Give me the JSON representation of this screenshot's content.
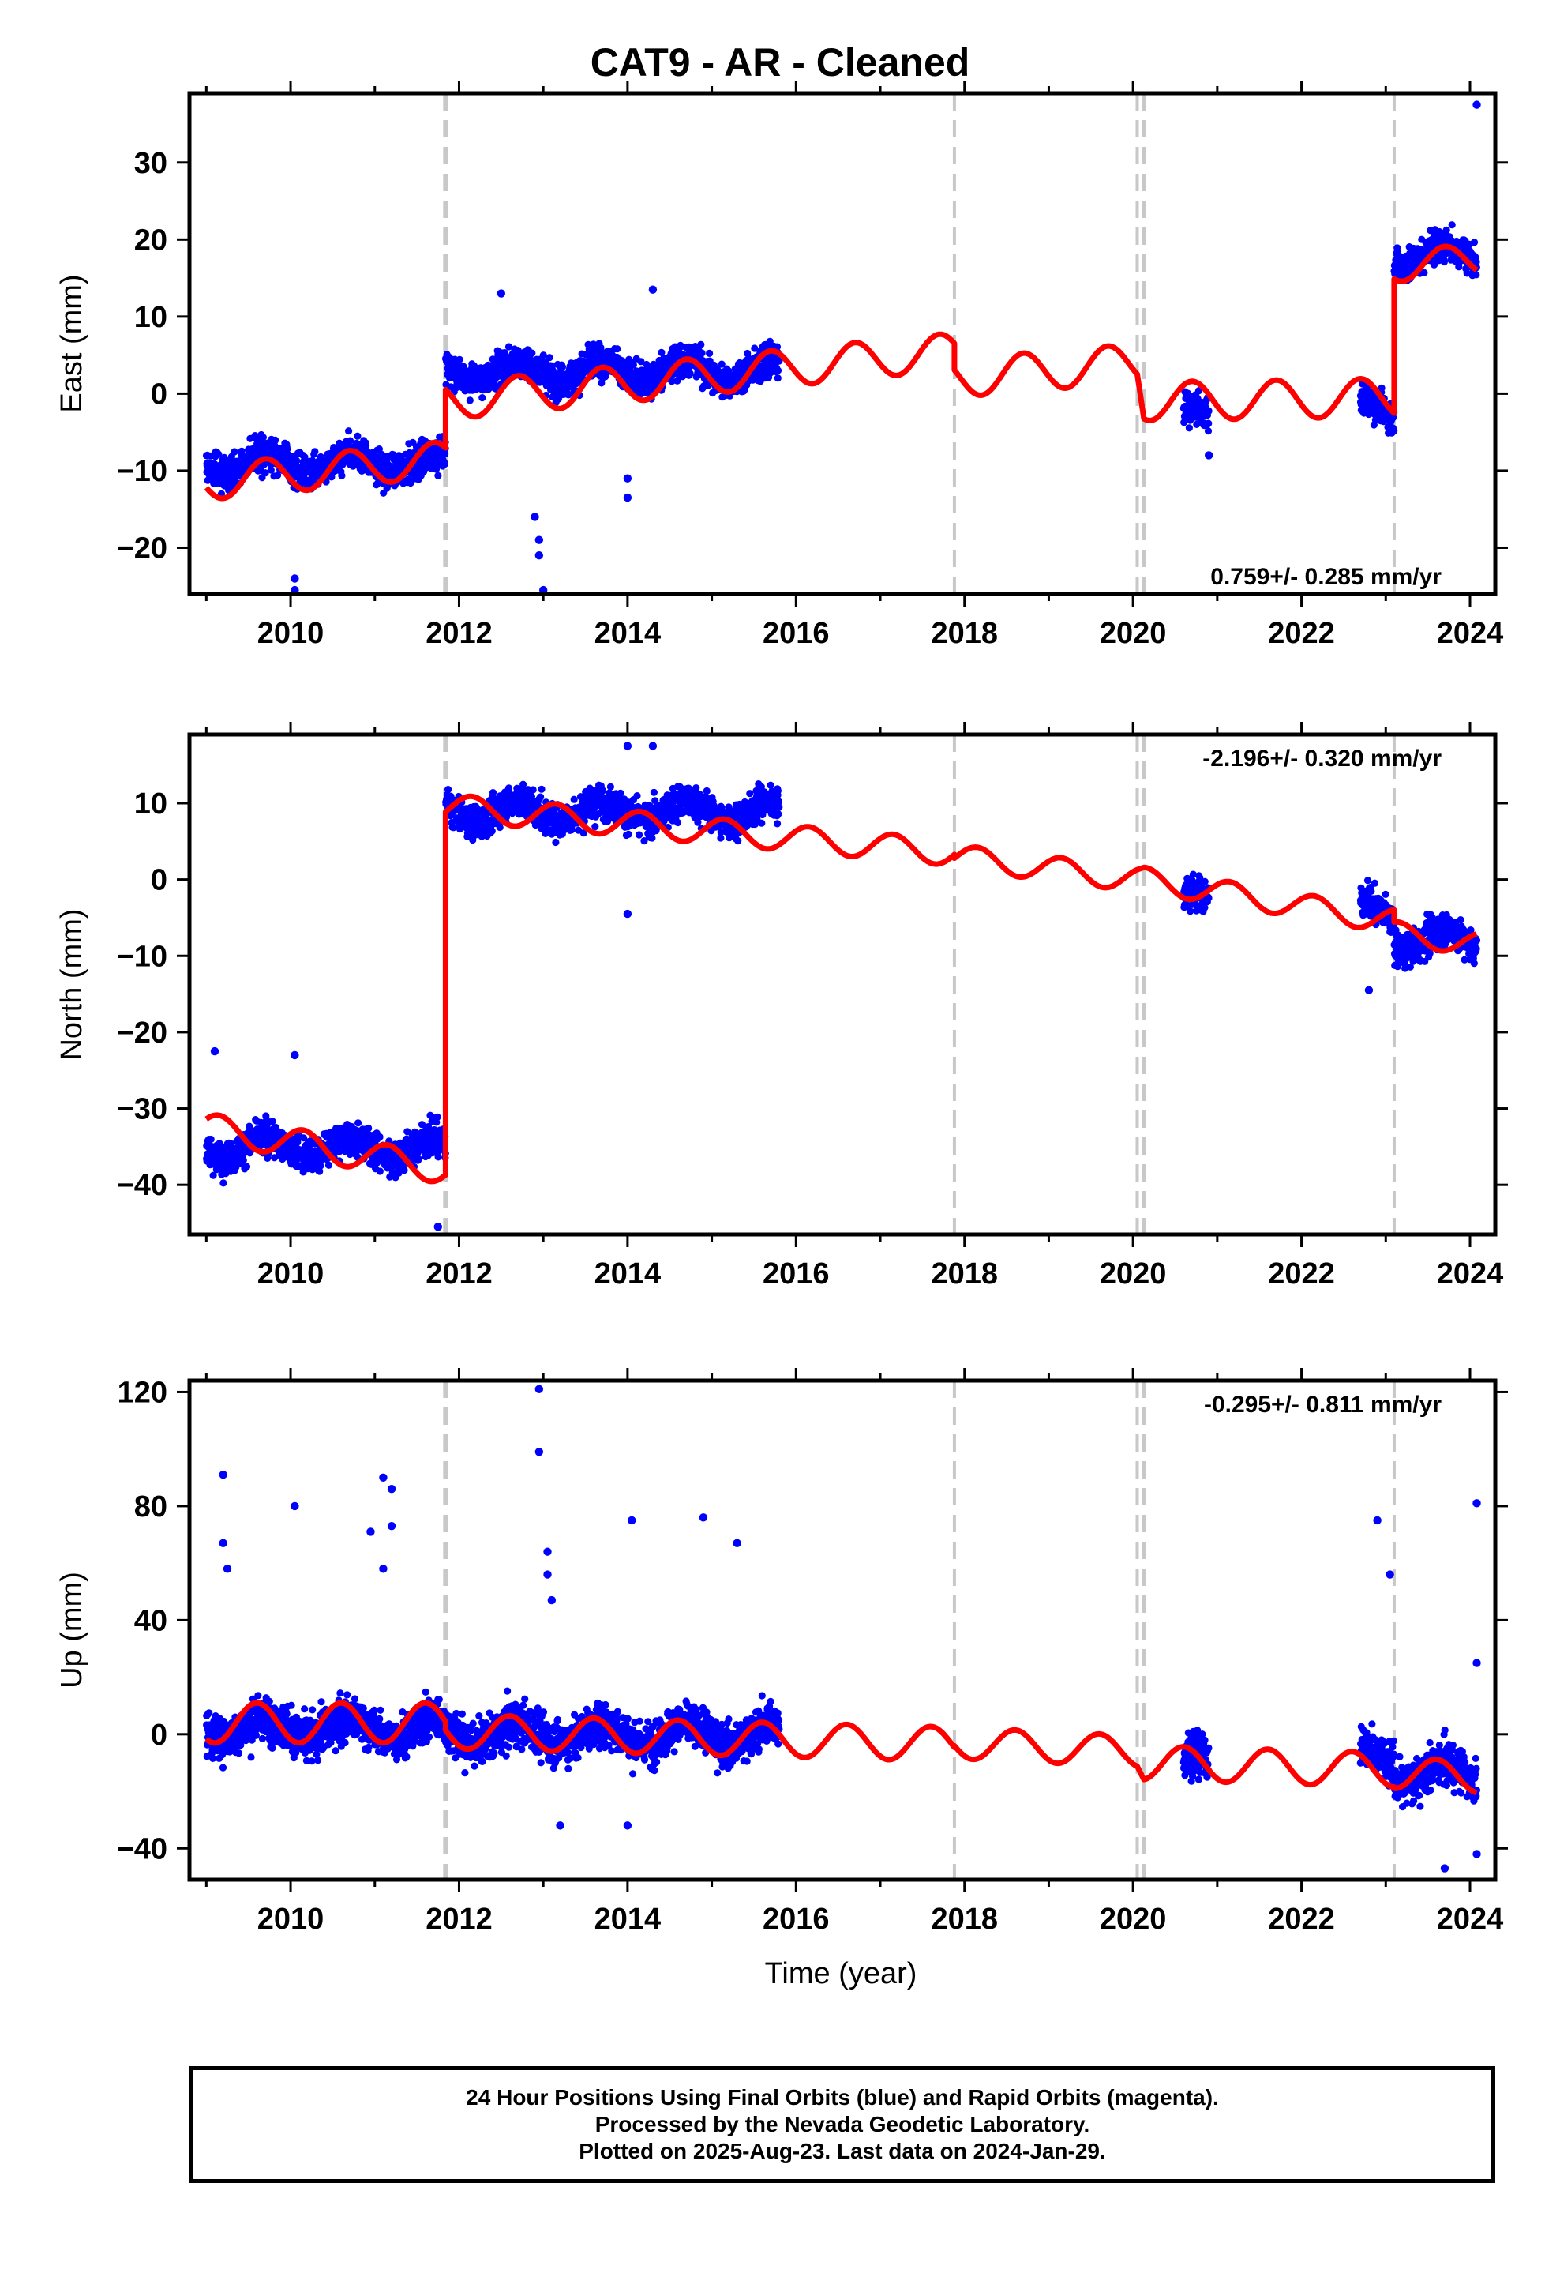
{
  "title": "CAT9  - AR - Cleaned",
  "xlabel": "Time (year)",
  "footer_lines": [
    "24 Hour Positions Using Final Orbits (blue) and Rapid Orbits (magenta).",
    "Processed by the Nevada Geodetic Laboratory.",
    "Plotted on 2025-Aug-23. Last data on 2024-Jan-29."
  ],
  "colors": {
    "data": "#0000ff",
    "model": "#ff0000",
    "breaks": "#c8c8c8",
    "frame": "#000000"
  },
  "chart_data": [
    {
      "type": "scatter",
      "panel": "east",
      "ylabel": "East (mm)",
      "rate_text": "0.759+/- 0.285 mm/yr",
      "rate_position": "bottom-right",
      "xlim": [
        2008.8,
        2024.3
      ],
      "ylim": [
        -26,
        39
      ],
      "xticks": [
        2010,
        2012,
        2014,
        2016,
        2018,
        2020,
        2022,
        2024
      ],
      "yticks": [
        -20,
        -10,
        0,
        10,
        20,
        30
      ],
      "breaks": [
        2011.83,
        2011.85,
        2017.88,
        2020.05,
        2020.13,
        2023.1
      ],
      "data_segments": [
        [
          2009.0,
          2011.84,
          -9
        ],
        [
          2011.84,
          2015.8,
          3
        ],
        [
          2020.6,
          2020.9,
          -3
        ],
        [
          2022.7,
          2023.1,
          -2
        ],
        [
          2023.1,
          2024.08,
          18
        ]
      ],
      "outliers": [
        [
          2010.05,
          -24
        ],
        [
          2010.05,
          -25.5
        ],
        [
          2012.9,
          -16
        ],
        [
          2012.95,
          -19
        ],
        [
          2013.0,
          -25.5
        ],
        [
          2012.95,
          -21
        ],
        [
          2014.0,
          -13.5
        ],
        [
          2014.0,
          -11
        ],
        [
          2012.5,
          13
        ],
        [
          2014.3,
          13.5
        ],
        [
          2024.08,
          37.5
        ],
        [
          2020.9,
          -8
        ]
      ],
      "model_segments": [
        {
          "x0": 2009.0,
          "x1": 2011.84,
          "y0": -11.5,
          "y1": -8.5,
          "amp": 2.3,
          "phase": 0.55
        },
        {
          "x0": 2011.84,
          "x1": 2017.88,
          "y0": -1.0,
          "y1": 5.5,
          "amp": 2.4,
          "phase": 0.55
        },
        {
          "x0": 2017.88,
          "x1": 2020.05,
          "y0": 2.0,
          "y1": 4.0,
          "amp": 2.5,
          "phase": 0.55
        },
        {
          "x0": 2020.13,
          "x1": 2023.1,
          "y0": -1.0,
          "y1": -0.5,
          "amp": 2.5,
          "phase": 0.55
        },
        {
          "x0": 2023.1,
          "x1": 2024.08,
          "y0": 16.5,
          "y1": 17.5,
          "amp": 2.0,
          "phase": 0.55
        }
      ]
    },
    {
      "type": "scatter",
      "panel": "north",
      "ylabel": "North (mm)",
      "rate_text": "-2.196+/- 0.320 mm/yr",
      "rate_position": "top-right",
      "xlim": [
        2008.8,
        2024.3
      ],
      "ylim": [
        -46.5,
        19
      ],
      "xticks": [
        2010,
        2012,
        2014,
        2016,
        2018,
        2020,
        2022,
        2024
      ],
      "yticks": [
        -40,
        -30,
        -20,
        -10,
        0,
        10
      ],
      "breaks": [
        2011.83,
        2011.85,
        2017.88,
        2020.05,
        2020.13,
        2023.1
      ],
      "data_segments": [
        [
          2009.0,
          2011.84,
          -35
        ],
        [
          2011.84,
          2015.8,
          9
        ],
        [
          2020.6,
          2020.9,
          -3
        ],
        [
          2022.7,
          2023.1,
          -4
        ],
        [
          2023.1,
          2024.08,
          -8
        ]
      ],
      "outliers": [
        [
          2014.0,
          -4.5
        ],
        [
          2014.0,
          17.5
        ],
        [
          2014.3,
          17.5
        ],
        [
          2009.1,
          -22.5
        ],
        [
          2010.05,
          -23
        ],
        [
          2011.75,
          -45.5
        ],
        [
          2022.8,
          -14.5
        ]
      ],
      "model_segments": [
        {
          "x0": 2009.0,
          "x1": 2011.84,
          "y0": -32.5,
          "y1": -38.0,
          "amp": 1.9,
          "phase": 0.1
        },
        {
          "x0": 2011.84,
          "x1": 2017.88,
          "y0": 9.5,
          "y1": 3.5,
          "amp": 1.7,
          "phase": 0.1
        },
        {
          "x0": 2017.88,
          "x1": 2020.05,
          "y0": 3.0,
          "y1": 0.0,
          "amp": 1.6,
          "phase": 0.1
        },
        {
          "x0": 2020.13,
          "x1": 2023.1,
          "y0": 0.0,
          "y1": -5.5,
          "amp": 1.6,
          "phase": 0.1
        },
        {
          "x0": 2023.1,
          "x1": 2024.08,
          "y0": -7.0,
          "y1": -8.5,
          "amp": 1.5,
          "phase": 0.1
        }
      ]
    },
    {
      "type": "scatter",
      "panel": "up",
      "ylabel": "Up (mm)",
      "rate_text": "-0.295+/- 0.811 mm/yr",
      "rate_position": "top-right",
      "xlim": [
        2008.8,
        2024.3
      ],
      "ylim": [
        -51,
        124
      ],
      "xticks": [
        2010,
        2012,
        2014,
        2016,
        2018,
        2020,
        2022,
        2024
      ],
      "yticks": [
        -40,
        0,
        40,
        80,
        120
      ],
      "breaks": [
        2011.83,
        2011.85,
        2017.88,
        2020.05,
        2020.13,
        2023.1
      ],
      "data_segments": [
        [
          2009.0,
          2011.84,
          2
        ],
        [
          2011.84,
          2015.8,
          0
        ],
        [
          2020.6,
          2020.9,
          -10
        ],
        [
          2022.7,
          2023.1,
          -8
        ],
        [
          2023.1,
          2024.08,
          -14
        ]
      ],
      "outliers": [
        [
          2009.2,
          91
        ],
        [
          2009.2,
          67
        ],
        [
          2009.25,
          58
        ],
        [
          2010.05,
          80
        ],
        [
          2010.95,
          71
        ],
        [
          2011.1,
          90
        ],
        [
          2011.2,
          86
        ],
        [
          2011.2,
          73
        ],
        [
          2011.1,
          58
        ],
        [
          2012.95,
          121
        ],
        [
          2012.95,
          99
        ],
        [
          2013.05,
          64
        ],
        [
          2013.05,
          56
        ],
        [
          2013.1,
          47
        ],
        [
          2014.05,
          75
        ],
        [
          2014.9,
          76
        ],
        [
          2015.3,
          67
        ],
        [
          2022.9,
          75
        ],
        [
          2023.05,
          56
        ],
        [
          2024.08,
          81
        ],
        [
          2024.08,
          25
        ],
        [
          2013.2,
          -32
        ],
        [
          2014.0,
          -32
        ],
        [
          2023.7,
          -47
        ],
        [
          2024.08,
          -42
        ]
      ],
      "model_segments": [
        {
          "x0": 2009.0,
          "x1": 2011.84,
          "y0": 4.0,
          "y1": 4.0,
          "amp": 7.0,
          "phase": 0.65
        },
        {
          "x0": 2011.84,
          "x1": 2017.88,
          "y0": 1.0,
          "y1": -3.5,
          "amp": 6.0,
          "phase": 0.65
        },
        {
          "x0": 2017.88,
          "x1": 2020.05,
          "y0": -3.0,
          "y1": -6.0,
          "amp": 5.5,
          "phase": 0.65
        },
        {
          "x0": 2020.13,
          "x1": 2023.1,
          "y0": -10.0,
          "y1": -12.5,
          "amp": 6.0,
          "phase": 0.65
        },
        {
          "x0": 2023.1,
          "x1": 2024.08,
          "y0": -13.5,
          "y1": -15.0,
          "amp": 5.5,
          "phase": 0.65
        }
      ]
    }
  ]
}
